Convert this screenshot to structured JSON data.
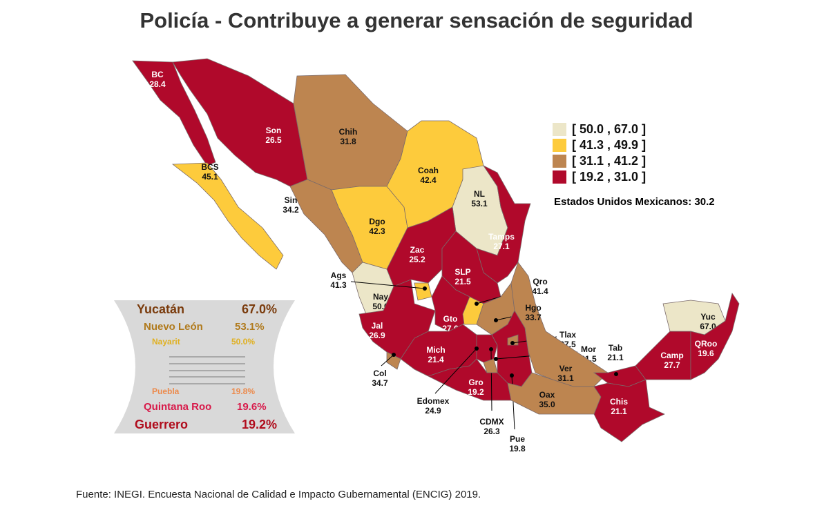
{
  "title": "Policía - Contribuye a generar sensación de seguridad",
  "colors": {
    "c1": "#ece6c8",
    "c2": "#fdcb3c",
    "c3": "#bd8550",
    "c4": "#b0092b"
  },
  "legend": [
    {
      "range": "[ 50.0 , 67.0 ]",
      "color": "#ece6c8"
    },
    {
      "range": "[ 41.3 , 49.9 ]",
      "color": "#fdcb3c"
    },
    {
      "range": "[ 31.1 , 41.2 ]",
      "color": "#bd8550"
    },
    {
      "range": "[ 19.2 , 31.0 ]",
      "color": "#b0092b"
    }
  ],
  "national": "Estados Unidos Mexicanos:  30.2",
  "states": {
    "BC": {
      "abbr": "BC",
      "value": "28.4"
    },
    "Son": {
      "abbr": "Son",
      "value": "26.5"
    },
    "Chih": {
      "abbr": "Chih",
      "value": "31.8"
    },
    "Coah": {
      "abbr": "Coah",
      "value": "42.4"
    },
    "NL": {
      "abbr": "NL",
      "value": "53.1"
    },
    "Tamps": {
      "abbr": "Tamps",
      "value": "27.1"
    },
    "BCS": {
      "abbr": "BCS",
      "value": "45.1"
    },
    "Sin": {
      "abbr": "Sin",
      "value": "34.2"
    },
    "Dgo": {
      "abbr": "Dgo",
      "value": "42.3"
    },
    "Zac": {
      "abbr": "Zac",
      "value": "25.2"
    },
    "SLP": {
      "abbr": "SLP",
      "value": "21.5"
    },
    "Nay": {
      "abbr": "Nay",
      "value": "50.0"
    },
    "Ags": {
      "abbr": "Ags",
      "value": "41.3"
    },
    "Jal": {
      "abbr": "Jal",
      "value": "26.9"
    },
    "Gto": {
      "abbr": "Gto",
      "value": "27.6"
    },
    "Qro": {
      "abbr": "Qro",
      "value": "41.4"
    },
    "Hgo": {
      "abbr": "Hgo",
      "value": "33.7"
    },
    "Tlax": {
      "abbr": "Tlax",
      "value": "37.5"
    },
    "Mor": {
      "abbr": "Mor",
      "value": "21.5"
    },
    "Mich": {
      "abbr": "Mich",
      "value": "21.4"
    },
    "Col": {
      "abbr": "Col",
      "value": "34.7"
    },
    "Edomex": {
      "abbr": "Edomex",
      "value": "24.9"
    },
    "CDMX": {
      "abbr": "CDMX",
      "value": "26.3"
    },
    "Gro": {
      "abbr": "Gro",
      "value": "19.2"
    },
    "Pue": {
      "abbr": "Pue",
      "value": "19.8"
    },
    "Oax": {
      "abbr": "Oax",
      "value": "35.0"
    },
    "Ver": {
      "abbr": "Ver",
      "value": "31.1"
    },
    "Tab": {
      "abbr": "Tab",
      "value": "21.1"
    },
    "Chis": {
      "abbr": "Chis",
      "value": "21.1"
    },
    "Camp": {
      "abbr": "Camp",
      "value": "27.7"
    },
    "Yuc": {
      "abbr": "Yuc",
      "value": "67.0"
    },
    "QRoo": {
      "abbr": "QRoo",
      "value": "19.6"
    }
  },
  "ranking": {
    "top": [
      {
        "name": "Yucatán",
        "value": "67.0%",
        "color": "#7a3b0c"
      },
      {
        "name": "Nuevo León",
        "value": "53.1%",
        "color": "#b07a1c"
      },
      {
        "name": "Nayarit",
        "value": "50.0%",
        "color": "#e0b020"
      }
    ],
    "bottom": [
      {
        "name": "Puebla",
        "value": "19.8%",
        "color": "#ec8a4c"
      },
      {
        "name": "Quintana Roo",
        "value": "19.6%",
        "color": "#d81a4a"
      },
      {
        "name": "Guerrero",
        "value": "19.2%",
        "color": "#b00c1c"
      }
    ]
  },
  "source": "Fuente: INEGI. Encuesta Nacional de Calidad e Impacto Gubernamental (ENCIG) 2019."
}
